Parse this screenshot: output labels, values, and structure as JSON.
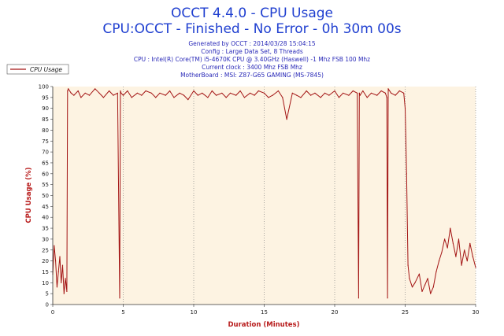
{
  "header": {
    "title": "OCCT 4.4.0 - CPU Usage",
    "subtitle": "CPU:OCCT - Finished - No Error - 0h 30m 00s",
    "info_lines": [
      "Generated by OCCT : 2014/03/28 15:04:15",
      "Config : Large Data Set, 8 Threads",
      "CPU : Intel(R) Core(TM) i5-4670K CPU @ 3.40GHz (Haswell) -1 Mhz FSB 100 Mhz",
      "Current clock : 3400 Mhz FSB  Mhz",
      "MotherBoard : MSI: Z87-G65 GAMING (MS-7845)"
    ]
  },
  "colors": {
    "series": "#a31414",
    "background": "#fdf3e2",
    "title": "#1f3fd0",
    "info": "#2a2ab8",
    "axis_label": "#b81c1c"
  },
  "chart_data": {
    "type": "line",
    "xlabel": "Duration (Minutes)",
    "ylabel": "CPU Usage (%)",
    "xlim": [
      0,
      30
    ],
    "ylim": [
      0,
      100
    ],
    "x_ticks": [
      0,
      5,
      10,
      15,
      20,
      25,
      30
    ],
    "y_ticks": [
      0,
      5,
      10,
      15,
      20,
      25,
      30,
      35,
      40,
      45,
      50,
      55,
      60,
      65,
      70,
      75,
      80,
      85,
      90,
      95,
      100
    ],
    "grid": "dotted vertical lines every 5 minutes",
    "legend": {
      "position": "top-left",
      "entries": [
        "CPU Usage"
      ]
    },
    "series": [
      {
        "name": "CPU Usage",
        "x": [
          0,
          0.1,
          0.2,
          0.3,
          0.4,
          0.5,
          0.6,
          0.7,
          0.8,
          0.9,
          1.0,
          1.05,
          1.1,
          1.3,
          1.5,
          1.8,
          2.0,
          2.3,
          2.6,
          3.0,
          3.3,
          3.6,
          4.0,
          4.3,
          4.6,
          4.75,
          4.8,
          4.85,
          5.0,
          5.3,
          5.6,
          6.0,
          6.3,
          6.6,
          7.0,
          7.3,
          7.6,
          8.0,
          8.3,
          8.6,
          9.0,
          9.3,
          9.6,
          10.0,
          10.3,
          10.6,
          11.0,
          11.3,
          11.6,
          12.0,
          12.3,
          12.6,
          13.0,
          13.3,
          13.6,
          14.0,
          14.3,
          14.6,
          15.0,
          15.3,
          15.6,
          16.0,
          16.3,
          16.6,
          17.0,
          17.3,
          17.6,
          18.0,
          18.3,
          18.6,
          19.0,
          19.3,
          19.6,
          20.0,
          20.3,
          20.6,
          21.0,
          21.3,
          21.6,
          21.7,
          21.75,
          21.8,
          22.0,
          22.3,
          22.6,
          23.0,
          23.3,
          23.6,
          23.7,
          23.75,
          23.8,
          24.0,
          24.3,
          24.6,
          24.9,
          25.0,
          25.1,
          25.2,
          25.3,
          25.5,
          25.7,
          26.0,
          26.2,
          26.4,
          26.6,
          26.8,
          27.0,
          27.2,
          27.4,
          27.6,
          27.8,
          28.0,
          28.2,
          28.4,
          28.6,
          28.8,
          29.0,
          29.2,
          29.4,
          29.6,
          29.8,
          30.0
        ],
        "values": [
          14,
          27,
          20,
          8,
          15,
          22,
          10,
          18,
          5,
          12,
          6,
          98,
          99,
          97,
          96,
          98,
          95,
          97,
          96,
          99,
          97,
          95,
          98,
          96,
          97,
          3,
          98,
          97,
          96,
          98,
          95,
          97,
          96,
          98,
          97,
          95,
          97,
          96,
          98,
          95,
          97,
          96,
          94,
          98,
          96,
          97,
          95,
          98,
          96,
          97,
          95,
          97,
          96,
          98,
          95,
          97,
          96,
          98,
          97,
          95,
          96,
          98,
          95,
          85,
          97,
          96,
          95,
          98,
          96,
          97,
          95,
          97,
          96,
          98,
          95,
          97,
          96,
          98,
          97,
          3,
          97,
          96,
          98,
          95,
          97,
          96,
          98,
          97,
          95,
          3,
          99,
          97,
          96,
          98,
          97,
          90,
          60,
          18,
          12,
          8,
          10,
          14,
          6,
          9,
          12,
          5,
          8,
          15,
          20,
          24,
          30,
          26,
          35,
          28,
          22,
          30,
          18,
          25,
          20,
          28,
          22,
          17
        ]
      }
    ]
  }
}
